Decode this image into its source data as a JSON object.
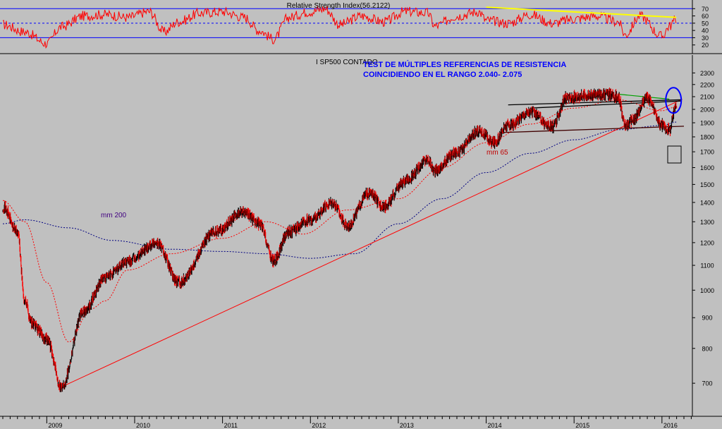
{
  "colors": {
    "background": "#c0c0c0",
    "rsi_line": "#ff0000",
    "rsi_bands": "#0000ff",
    "rsi_trend": "#ffff00",
    "price_up": "#000000",
    "price_down": "#ff0000",
    "mm65": "#ff0000",
    "mm200": "#000080",
    "long_trend": "#ff0000",
    "resistance": "#000000",
    "support": "#400000",
    "annotation_text": "#0000ff",
    "highlight_circle": "#0000ff",
    "green_line": "#00a000",
    "mm65_label": "#c00000",
    "mm200_label": "#400080"
  },
  "chart_data": [
    {
      "type": "line",
      "title": "Relative Strength Index(56.2122)",
      "ylim": [
        10,
        80
      ],
      "yticks": [
        "70",
        "60",
        "50",
        "40",
        "30",
        "20"
      ],
      "levels": [
        70,
        50,
        30
      ],
      "last_value": 56.2122,
      "trendline": {
        "from": [
          "2014-01",
          72
        ],
        "to": [
          "2016-02",
          58
        ]
      },
      "x_dates": [
        "2008-07",
        "2008-10",
        "2009-01",
        "2009-03",
        "2009-06",
        "2009-09",
        "2009-12",
        "2010-03",
        "2010-05",
        "2010-07",
        "2010-10",
        "2011-01",
        "2011-04",
        "2011-06",
        "2011-08",
        "2011-10",
        "2012-01",
        "2012-03",
        "2012-05",
        "2012-08",
        "2012-11",
        "2013-02",
        "2013-05",
        "2013-06",
        "2013-09",
        "2013-12",
        "2014-01",
        "2014-04",
        "2014-07",
        "2014-10",
        "2015-01",
        "2015-04",
        "2015-07",
        "2015-08",
        "2015-10",
        "2016-01",
        "2016-02",
        "2016-03"
      ],
      "values": [
        48,
        38,
        22,
        45,
        60,
        62,
        58,
        66,
        38,
        52,
        64,
        66,
        58,
        40,
        28,
        58,
        66,
        70,
        48,
        60,
        52,
        66,
        64,
        46,
        60,
        66,
        54,
        50,
        62,
        50,
        56,
        60,
        52,
        34,
        60,
        32,
        46,
        56
      ]
    },
    {
      "type": "line",
      "title": "I SP500 CONTADO",
      "yscale": "log",
      "ylim": [
        620,
        2450
      ],
      "yticks": [
        "2300",
        "2200",
        "2100",
        "2000",
        "1900",
        "1800",
        "1700",
        "1600",
        "1500",
        "1400",
        "1300",
        "1200",
        "1100",
        "1000",
        "900",
        "800",
        "700"
      ],
      "xtick_labels": [
        "2009",
        "2010",
        "2011",
        "2012",
        "2013",
        "2014",
        "2015",
        "2016"
      ],
      "x_dates": [
        "2008-07",
        "2008-09",
        "2008-10",
        "2008-11",
        "2009-01",
        "2009-03",
        "2009-06",
        "2009-09",
        "2009-12",
        "2010-04",
        "2010-07",
        "2010-12",
        "2011-04",
        "2011-06",
        "2011-08",
        "2011-10",
        "2012-01",
        "2012-04",
        "2012-06",
        "2012-09",
        "2012-11",
        "2013-02",
        "2013-05",
        "2013-06",
        "2013-09",
        "2013-12",
        "2014-02",
        "2014-04",
        "2014-07",
        "2014-10",
        "2014-12",
        "2015-03",
        "2015-05",
        "2015-07",
        "2015-08",
        "2015-09",
        "2015-11",
        "2016-01",
        "2016-02",
        "2016-03"
      ],
      "values": [
        1380,
        1250,
        960,
        880,
        830,
        690,
        920,
        1050,
        1115,
        1200,
        1030,
        1250,
        1350,
        1290,
        1120,
        1250,
        1310,
        1400,
        1280,
        1450,
        1380,
        1520,
        1650,
        1580,
        1700,
        1840,
        1760,
        1880,
        1980,
        1870,
        2090,
        2110,
        2120,
        2100,
        1880,
        1920,
        2090,
        1880,
        1850,
        2050
      ],
      "mm_200": {
        "label": "mm 200",
        "x_dates": [
          "2008-07",
          "2008-10",
          "2009-04",
          "2009-10",
          "2010-06",
          "2011-01",
          "2011-07",
          "2012-01",
          "2012-07",
          "2013-01",
          "2013-07",
          "2014-01",
          "2014-07",
          "2015-01",
          "2015-07",
          "2016-01",
          "2016-03"
        ],
        "values": [
          1290,
          1310,
          1270,
          1210,
          1170,
          1160,
          1150,
          1130,
          1150,
          1290,
          1420,
          1570,
          1690,
          1780,
          1850,
          1880,
          1905
        ]
      },
      "mm_65": {
        "label": "mm 65",
        "x_dates": [
          "2008-07",
          "2008-10",
          "2009-01",
          "2009-04",
          "2009-07",
          "2009-09",
          "2009-12",
          "2010-06",
          "2011-01",
          "2011-07",
          "2011-12",
          "2012-06",
          "2013-01",
          "2013-07",
          "2014-01",
          "2014-07",
          "2015-01",
          "2015-07",
          "2016-01",
          "2016-03"
        ],
        "values": [
          1410,
          1300,
          1030,
          820,
          930,
          960,
          1080,
          1150,
          1220,
          1300,
          1240,
          1360,
          1420,
          1600,
          1760,
          1890,
          2010,
          2075,
          1990,
          2020
        ]
      },
      "annotations": [
        "TEST DE MÚLTIPLES REFERENCIAS DE RESISTENCIA",
        "COINCIDIENDO EN EL RANGO 2.040-  2.075"
      ],
      "lines": {
        "long_trend": {
          "from": [
            "2009-03",
            690
          ],
          "to": [
            "2016-03",
            2080
          ]
        },
        "resistance_top": {
          "from": [
            "2014-04",
            2035
          ],
          "to": [
            "2016-03",
            2075
          ]
        },
        "resistance_mid": {
          "from": [
            "2014-07",
            2010
          ],
          "to": [
            "2016-03",
            2065
          ]
        },
        "support": {
          "from": [
            "2014-03",
            1830
          ],
          "to": [
            "2016-04",
            1875
          ]
        },
        "green": {
          "from": [
            "2015-07",
            2120
          ],
          "to": [
            "2016-02",
            2080
          ]
        }
      }
    }
  ]
}
